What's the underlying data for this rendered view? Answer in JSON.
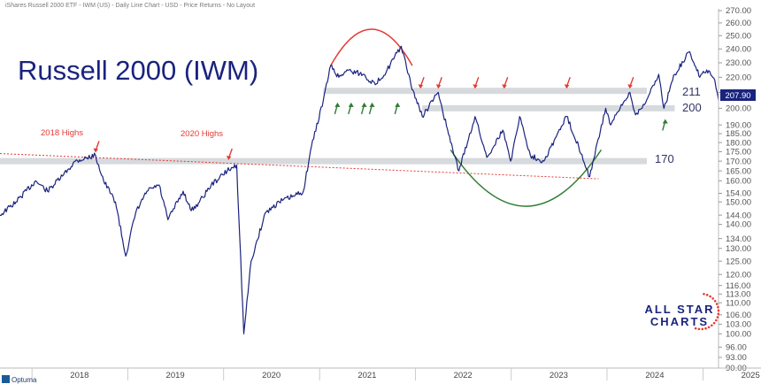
{
  "header": {
    "subtitle": "iShares Russell 2000 ETF - IWM (US) - Daily Line Chart - USD - Price Returns - No Layout"
  },
  "chart_data": {
    "type": "line",
    "title": "Russell 2000 (IWM)",
    "xlabel": "",
    "ylabel": "",
    "x_range": [
      "2017-09",
      "2025-03"
    ],
    "ylim": [
      90,
      270
    ],
    "y_scale": "log",
    "y_ticks": [
      90,
      93,
      96,
      100,
      103,
      106,
      110,
      113,
      116,
      120,
      125,
      130,
      134,
      140,
      144,
      150,
      154,
      160,
      165,
      170,
      175,
      180,
      185,
      190,
      200,
      210,
      220,
      230,
      240,
      250,
      260,
      270
    ],
    "x_tick_labels": [
      "2018",
      "2019",
      "2020",
      "2021",
      "2022",
      "2023",
      "2024",
      "2025"
    ],
    "grid": false,
    "series": [
      {
        "name": "",
        "color": "#1a237e",
        "x": [
          "2017-09-01",
          "2017-11-01",
          "2018-01-15",
          "2018-03-01",
          "2018-05-01",
          "2018-06-15",
          "2018-08-31",
          "2018-10-01",
          "2018-11-15",
          "2018-12-24",
          "2019-01-31",
          "2019-03-15",
          "2019-04-30",
          "2019-06-03",
          "2019-07-31",
          "2019-08-31",
          "2019-10-01",
          "2019-11-15",
          "2020-01-15",
          "2020-02-20",
          "2020-03-18",
          "2020-04-15",
          "2020-06-08",
          "2020-07-31",
          "2020-09-30",
          "2020-10-31",
          "2020-12-01",
          "2021-01-15",
          "2021-02-12",
          "2021-03-15",
          "2021-04-15",
          "2021-06-15",
          "2021-08-01",
          "2021-09-15",
          "2021-11-08",
          "2021-12-15",
          "2022-01-27",
          "2022-03-29",
          "2022-05-15",
          "2022-06-16",
          "2022-08-16",
          "2022-09-30",
          "2022-11-30",
          "2022-12-30",
          "2023-02-02",
          "2023-03-15",
          "2023-05-05",
          "2023-07-31",
          "2023-09-15",
          "2023-10-27",
          "2023-12-27",
          "2024-01-15",
          "2024-03-28",
          "2024-04-19",
          "2024-05-31",
          "2024-07-16",
          "2024-08-05",
          "2024-09-15",
          "2024-11-11",
          "2024-12-20",
          "2025-01-15",
          "2025-02-15",
          "2025-03-01"
        ],
        "values": [
          144,
          150,
          160,
          155,
          163,
          170,
          173,
          160,
          150,
          127,
          145,
          155,
          158,
          142,
          155,
          146,
          150,
          158,
          165,
          168,
          100,
          125,
          145,
          150,
          153,
          155,
          178,
          205,
          228,
          220,
          225,
          222,
          215,
          225,
          242,
          215,
          195,
          210,
          180,
          165,
          195,
          172,
          187,
          170,
          195,
          173,
          170,
          195,
          178,
          162,
          200,
          190,
          210,
          196,
          205,
          222,
          200,
          222,
          238,
          220,
          225,
          218,
          205
        ]
      }
    ],
    "levels": [
      {
        "label": "211",
        "value": 211
      },
      {
        "label": "200",
        "value": 200
      },
      {
        "label": "170",
        "value": 170
      }
    ],
    "last_price": "207.90",
    "annotations": [
      {
        "text": "2018 Highs",
        "x": "2018-08-31",
        "y": 173
      },
      {
        "text": "2020 Highs",
        "x": "2020-01-20",
        "y": 169
      }
    ]
  },
  "branding": {
    "line1": "ALL STAR",
    "line2": "CHARTS",
    "vendor": "Optuma"
  }
}
